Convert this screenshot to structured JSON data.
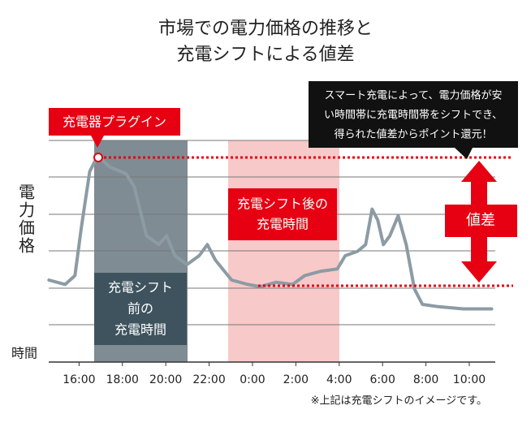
{
  "chart_data": {
    "type": "line",
    "title": [
      "市場での電力価格の推移と",
      "充電シフトによる値差"
    ],
    "y_label": "電力価格",
    "x_label": "時間",
    "x": [
      14.61,
      15.36,
      15.81,
      16.11,
      16.49,
      16.86,
      17.42,
      18.17,
      18.55,
      19.11,
      19.67,
      20.04,
      20.42,
      20.98,
      21.54,
      21.92,
      22.29,
      23.04,
      23.79,
      24.35,
      25.1,
      25.85,
      26.41,
      27.16,
      27.91,
      28.28,
      28.85,
      29.22,
      29.52,
      29.78,
      30.04,
      30.34,
      30.72,
      31.09,
      31.47,
      31.84,
      32.59,
      33.72,
      35.03
    ],
    "series": [
      {
        "color": "#8c9ba4",
        "values": [
          37,
          35,
          39,
          61,
          86,
          93,
          88,
          85,
          79,
          57,
          53,
          57,
          48,
          44,
          48,
          53,
          46,
          37,
          35,
          34,
          36,
          35,
          39,
          41,
          42,
          48,
          50,
          53,
          69,
          64,
          53,
          57,
          66,
          53,
          33,
          26,
          25,
          24,
          24
        ]
      }
    ],
    "xlim": [
      14.6,
      35.2
    ],
    "ylim": [
      0,
      100
    ],
    "xticks": [
      {
        "value": 16,
        "label": "16:00"
      },
      {
        "value": 18,
        "label": "18:00"
      },
      {
        "value": 20,
        "label": "20:00"
      },
      {
        "value": 22,
        "label": "22:00"
      },
      {
        "value": 24,
        "label": "0:00"
      },
      {
        "value": 26,
        "label": "2:00"
      },
      {
        "value": 28,
        "label": "4:00"
      },
      {
        "value": 30,
        "label": "6:00"
      },
      {
        "value": 32,
        "label": "8:00"
      },
      {
        "value": 34,
        "label": "10:00"
      }
    ],
    "annotations": {
      "plugin": "充電器プラグイン",
      "before": [
        "充電シフト",
        "前の",
        "充電時間"
      ],
      "after": [
        "充電シフト後の",
        "充電時間"
      ],
      "difference": "値差",
      "callout": [
        "スマート充電によって、電力価格が安",
        "い時間帯に充電時間帯をシフトでき、",
        "得られた値差からポイント還元！"
      ]
    },
    "note": "※上記は充電シフトのイメージです。"
  }
}
